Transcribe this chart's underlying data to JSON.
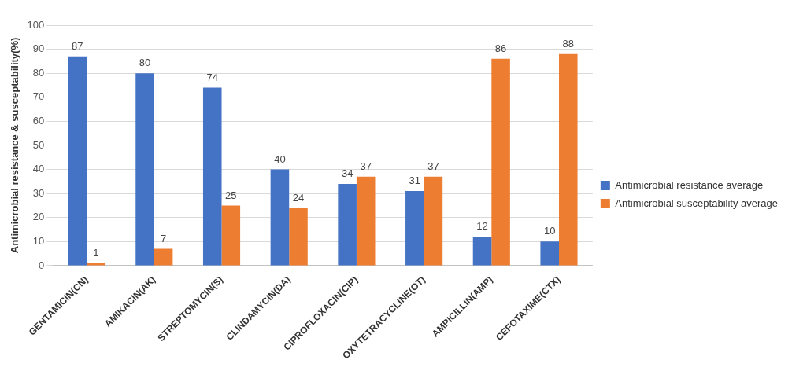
{
  "chart_data": {
    "type": "bar",
    "ylabel": "Antimicrobial resistance & susceptability(%)",
    "categories": [
      "GENTAMICIN(CN)",
      "AMIKACIN(AK)",
      "STREPTOMYCIN(S)",
      "CLINDAMYCIN(DA)",
      "CIPROFLOXACIN(CIP)",
      "OXYTETRACYCLINE(OT)",
      "AMPICILLIN(AMP)",
      "CEFOTAXIME(CTX)"
    ],
    "series": [
      {
        "name": "Antimicrobial resistance average",
        "color": "#4472c4",
        "values": [
          87,
          80,
          74,
          40,
          34,
          31,
          12,
          10
        ]
      },
      {
        "name": "Antimicrobial susceptability average",
        "color": "#ed7d31",
        "values": [
          1,
          7,
          25,
          24,
          37,
          37,
          86,
          88
        ]
      }
    ],
    "ylim": [
      0,
      100
    ],
    "yticks": [
      0,
      10,
      20,
      30,
      40,
      50,
      60,
      70,
      80,
      90,
      100
    ],
    "grid": "y",
    "legend": "right",
    "data_labels": true
  }
}
